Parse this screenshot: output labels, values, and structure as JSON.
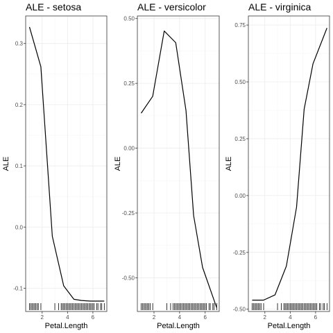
{
  "chart_data": [
    {
      "type": "line",
      "title": "ALE - setosa",
      "xlabel": "Petal.Length",
      "ylabel": "ALE",
      "xlim": [
        0.7,
        7.1
      ],
      "ylim": [
        -0.138,
        0.345
      ],
      "xticks": [
        2,
        4,
        6
      ],
      "yticks": [
        -0.1,
        0.0,
        0.1,
        0.2,
        0.3
      ],
      "ytick_labels": [
        "-0.1",
        "0.0",
        "0.1",
        "0.2",
        "0.3"
      ],
      "grid": true,
      "x": [
        1.0,
        1.9,
        2.8,
        3.7,
        4.5,
        5.1,
        5.8,
        6.9
      ],
      "y": [
        0.327,
        0.262,
        -0.015,
        -0.096,
        -0.118,
        -0.12,
        -0.121,
        -0.121
      ],
      "rug": [
        1.0,
        1.1,
        1.2,
        1.3,
        1.4,
        1.5,
        1.6,
        1.7,
        1.9,
        3.0,
        3.3,
        3.5,
        3.6,
        3.7,
        3.8,
        3.9,
        4.0,
        4.1,
        4.2,
        4.3,
        4.4,
        4.5,
        4.6,
        4.7,
        4.8,
        4.9,
        5.0,
        5.1,
        5.2,
        5.3,
        5.4,
        5.5,
        5.6,
        5.7,
        5.8,
        5.9,
        6.0,
        6.1,
        6.3,
        6.4,
        6.6,
        6.7,
        6.9
      ]
    },
    {
      "type": "line",
      "title": "ALE - versicolor",
      "xlabel": "Petal.Length",
      "ylabel": "ALE",
      "xlim": [
        0.7,
        7.1
      ],
      "ylim": [
        -0.63,
        0.51
      ],
      "xticks": [
        2,
        4,
        6
      ],
      "yticks": [
        -0.5,
        -0.25,
        0.0,
        0.25,
        0.5
      ],
      "ytick_labels": [
        "-0.50",
        "-0.25",
        "0.00",
        "0.25",
        "0.50"
      ],
      "grid": true,
      "x": [
        1.0,
        1.9,
        2.8,
        3.7,
        4.5,
        5.1,
        5.8,
        6.9
      ],
      "y": [
        0.135,
        0.2,
        0.452,
        0.407,
        0.145,
        -0.26,
        -0.46,
        -0.615
      ],
      "rug": [
        1.0,
        1.1,
        1.2,
        1.3,
        1.4,
        1.5,
        1.6,
        1.7,
        1.9,
        3.0,
        3.3,
        3.5,
        3.6,
        3.7,
        3.8,
        3.9,
        4.0,
        4.1,
        4.2,
        4.3,
        4.4,
        4.5,
        4.6,
        4.7,
        4.8,
        4.9,
        5.0,
        5.1,
        5.2,
        5.3,
        5.4,
        5.5,
        5.6,
        5.7,
        5.8,
        5.9,
        6.0,
        6.1,
        6.3,
        6.4,
        6.6,
        6.7,
        6.9
      ]
    },
    {
      "type": "line",
      "title": "ALE - virginica",
      "xlabel": "Petal.Length",
      "ylabel": "ALE",
      "xlim": [
        0.7,
        7.1
      ],
      "ylim": [
        -0.51,
        0.79
      ],
      "xticks": [
        2,
        4,
        6
      ],
      "yticks": [
        -0.5,
        -0.25,
        0.0,
        0.25,
        0.5,
        0.75
      ],
      "ytick_labels": [
        "-0.50",
        "-0.25",
        "0.00",
        "0.25",
        "0.50",
        "0.75"
      ],
      "grid": true,
      "x": [
        1.0,
        1.9,
        2.8,
        3.7,
        4.5,
        5.1,
        5.8,
        6.9
      ],
      "y": [
        -0.46,
        -0.46,
        -0.437,
        -0.31,
        -0.05,
        0.38,
        0.58,
        0.737
      ],
      "rug": [
        1.0,
        1.1,
        1.2,
        1.3,
        1.4,
        1.5,
        1.6,
        1.7,
        1.9,
        3.0,
        3.3,
        3.5,
        3.6,
        3.7,
        3.8,
        3.9,
        4.0,
        4.1,
        4.2,
        4.3,
        4.4,
        4.5,
        4.6,
        4.7,
        4.8,
        4.9,
        5.0,
        5.1,
        5.2,
        5.3,
        5.4,
        5.5,
        5.6,
        5.7,
        5.8,
        5.9,
        6.0,
        6.1,
        6.3,
        6.4,
        6.6,
        6.7,
        6.9
      ]
    }
  ],
  "colors": {
    "line": "#000000",
    "grid": "#ebebeb",
    "border": "#333333",
    "tick_text": "#4d4d4d"
  }
}
